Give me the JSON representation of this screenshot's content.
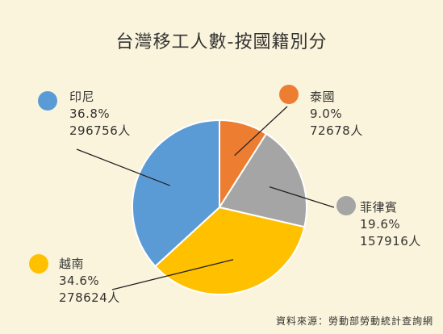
{
  "chart_data": {
    "type": "pie",
    "title": "台灣移工人數-按國籍別分",
    "slices": [
      {
        "label": "泰國",
        "percent_text": "9.0%",
        "count_text": "72678人",
        "value": 72678,
        "color": "#ed7d31"
      },
      {
        "label": "菲律賓",
        "percent_text": "19.6%",
        "count_text": "157916人",
        "value": 157916,
        "color": "#a5a5a5"
      },
      {
        "label": "越南",
        "percent_text": "34.6%",
        "count_text": "278624人",
        "value": 278624,
        "color": "#ffc000"
      },
      {
        "label": "印尼",
        "percent_text": "36.8%",
        "count_text": "296756人",
        "value": 296756,
        "color": "#5b9bd5"
      }
    ],
    "source": "資料來源：勞動部勞動統計查詢網"
  }
}
